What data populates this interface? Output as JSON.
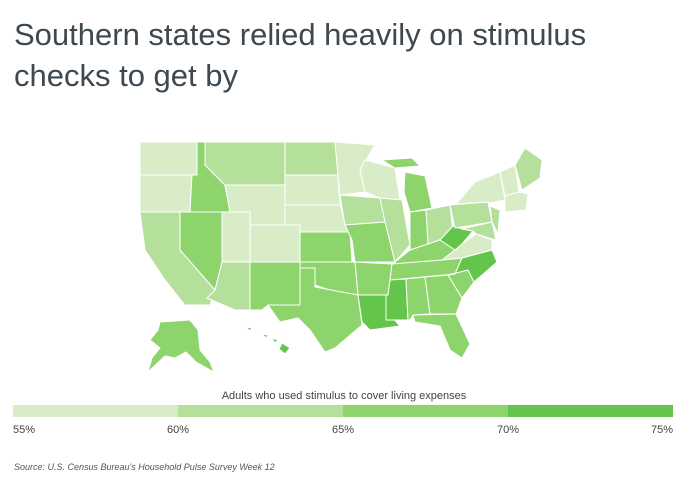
{
  "title": "Southern states relied heavily on stimulus checks to get by",
  "legend": {
    "title": "Adults who used stimulus to cover living expenses",
    "ticks": [
      {
        "value": 55,
        "label": "55%"
      },
      {
        "value": 60,
        "label": "60%"
      },
      {
        "value": 65,
        "label": "65%"
      },
      {
        "value": 70,
        "label": "70%"
      },
      {
        "value": 75,
        "label": "75%"
      }
    ],
    "colors": [
      "#d9ecc8",
      "#b5e09c",
      "#8ed46c",
      "#63c64a"
    ]
  },
  "regions": {
    "values": [
      57.5,
      57.5,
      62.5,
      67.5,
      67.5,
      62.5,
      57.5,
      57.5,
      62.5,
      57.5,
      67.5,
      62.5,
      57.5,
      57.5,
      67.5,
      67.5,
      67.5,
      57.5,
      62.5,
      67.5,
      67.5,
      72.5,
      57.5,
      62.5,
      67.5,
      67.5,
      62.5,
      67.5,
      67.5,
      72.5,
      67.5,
      67.5,
      67.5,
      67.5,
      72.5,
      57.5,
      72.5,
      62.5,
      57.5,
      62.5,
      62.5,
      57.5,
      62.5,
      57.5,
      67.5,
      72.5
    ]
  },
  "source": "Source: U.S. Census Bureau's Household Pulse Survey Week 12"
}
